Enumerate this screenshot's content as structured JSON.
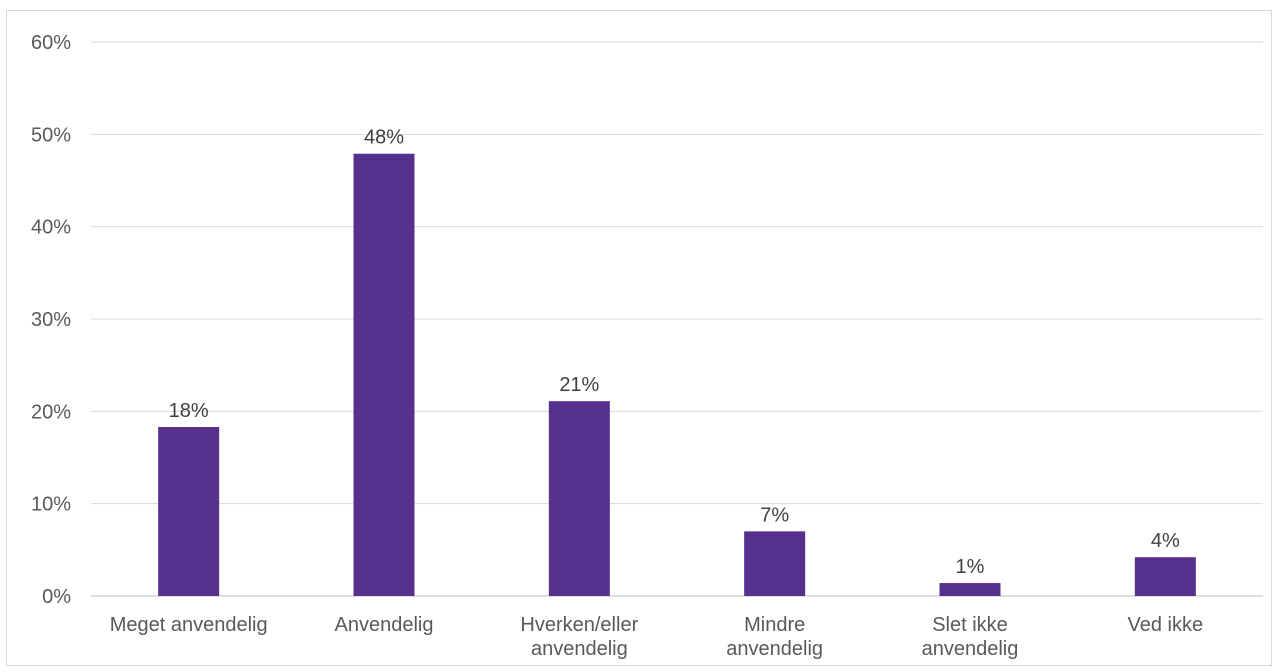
{
  "chart_data": {
    "type": "bar",
    "categories": [
      [
        "Meget anvendelig"
      ],
      [
        "Anvendelig"
      ],
      [
        "Hverken/eller",
        "anvendelig"
      ],
      [
        "Mindre",
        "anvendelig"
      ],
      [
        "Slet ikke",
        "anvendelig"
      ],
      [
        "Ved ikke"
      ]
    ],
    "values": [
      18.3,
      47.9,
      21.1,
      7.0,
      1.4,
      4.2
    ],
    "data_labels": [
      "18%",
      "48%",
      "21%",
      "7%",
      "1%",
      "4%"
    ],
    "y_ticks": [
      0,
      10,
      20,
      30,
      40,
      50,
      60
    ],
    "y_tick_labels": [
      "0%",
      "10%",
      "20%",
      "30%",
      "40%",
      "50%",
      "60%"
    ],
    "ylim": [
      0,
      60
    ],
    "title": "",
    "xlabel": "",
    "ylabel": "",
    "grid": true,
    "legend": "none",
    "colors": {
      "bar": "#55308D"
    }
  }
}
